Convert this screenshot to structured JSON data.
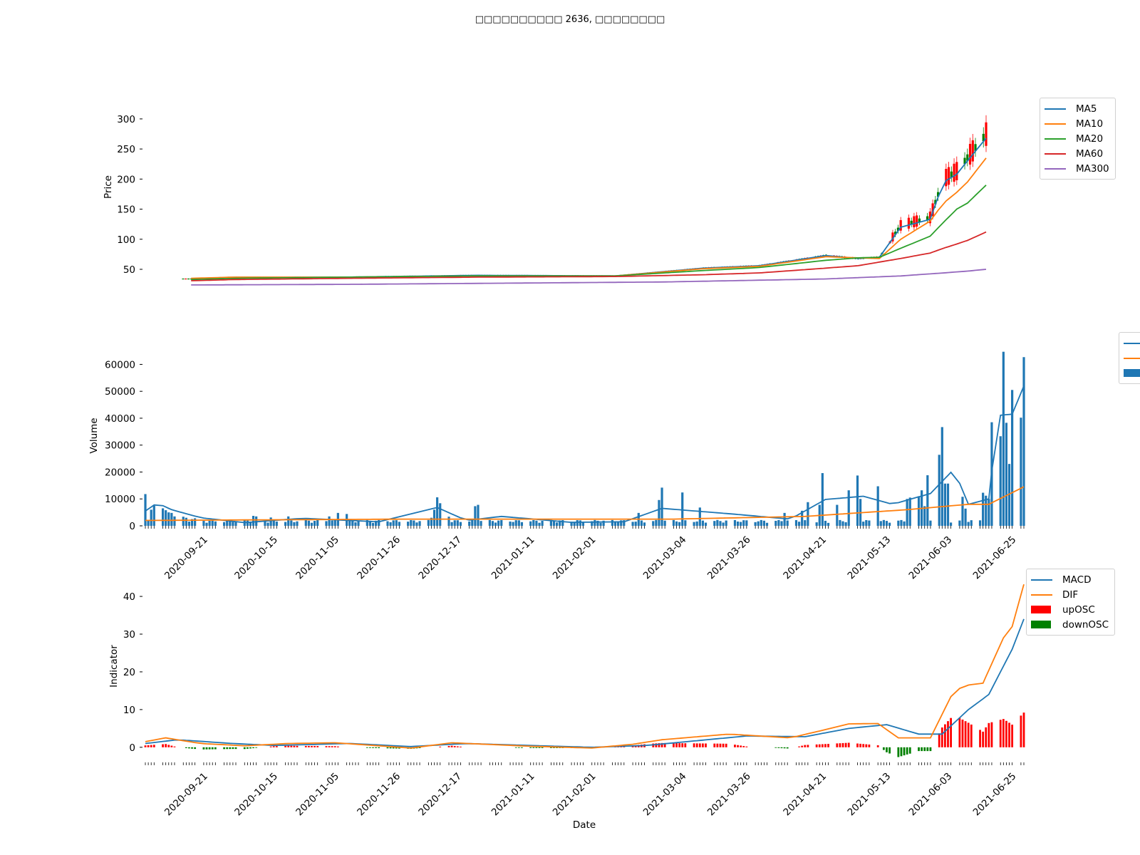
{
  "title": "□□□□□□□□□□ 2636, □□□□□□□□",
  "colors": {
    "blue": "#1f77b4",
    "orange": "#ff7f0e",
    "green": "#2ca02c",
    "red": "#d62728",
    "purple": "#9467bd",
    "osc_up": "#ff0000",
    "osc_down": "#008000"
  },
  "chart_data": [
    {
      "type": "line",
      "panel": "price",
      "ylabel": "Price",
      "ylim": [
        18,
        320
      ],
      "yticks": [
        50,
        100,
        150,
        200,
        250,
        300
      ],
      "x_range": [
        "2020-09-01",
        "2021-06-29"
      ],
      "candlesticks": "daily OHLC candles, red = up, green = down",
      "series": [
        {
          "name": "MA5",
          "color": "#1f77b4",
          "points": [
            [
              "2020-09-04",
              34
            ],
            [
              "2020-09-20",
              37
            ],
            [
              "2020-11-01",
              37
            ],
            [
              "2020-12-20",
              40
            ],
            [
              "2021-02-10",
              39
            ],
            [
              "2021-03-15",
              52
            ],
            [
              "2021-04-05",
              56
            ],
            [
              "2021-04-30",
              73
            ],
            [
              "2021-05-12",
              68
            ],
            [
              "2021-05-20",
              70
            ],
            [
              "2021-05-28",
              120
            ],
            [
              "2021-06-08",
              133
            ],
            [
              "2021-06-13",
              195
            ],
            [
              "2021-06-18",
              208
            ],
            [
              "2021-06-22",
              230
            ],
            [
              "2021-06-29",
              268
            ]
          ]
        },
        {
          "name": "MA10",
          "color": "#ff7f0e",
          "points": [
            [
              "2020-09-04",
              35
            ],
            [
              "2020-09-20",
              37
            ],
            [
              "2020-11-01",
              37
            ],
            [
              "2020-12-20",
              39
            ],
            [
              "2021-02-10",
              39
            ],
            [
              "2021-03-15",
              51
            ],
            [
              "2021-04-05",
              55
            ],
            [
              "2021-04-30",
              71
            ],
            [
              "2021-05-12",
              69
            ],
            [
              "2021-05-20",
              68
            ],
            [
              "2021-05-28",
              100
            ],
            [
              "2021-06-08",
              130
            ],
            [
              "2021-06-13",
              160
            ],
            [
              "2021-06-18",
              178
            ],
            [
              "2021-06-22",
              195
            ],
            [
              "2021-06-29",
              235
            ]
          ]
        },
        {
          "name": "MA20",
          "color": "#2ca02c",
          "points": [
            [
              "2020-09-04",
              33
            ],
            [
              "2020-09-20",
              35
            ],
            [
              "2020-11-01",
              37
            ],
            [
              "2020-12-20",
              39
            ],
            [
              "2021-02-10",
              39
            ],
            [
              "2021-03-15",
              48
            ],
            [
              "2021-04-05",
              53
            ],
            [
              "2021-04-30",
              65
            ],
            [
              "2021-05-12",
              69
            ],
            [
              "2021-05-20",
              70
            ],
            [
              "2021-05-28",
              85
            ],
            [
              "2021-06-08",
              105
            ],
            [
              "2021-06-13",
              128
            ],
            [
              "2021-06-18",
              150
            ],
            [
              "2021-06-22",
              160
            ],
            [
              "2021-06-29",
              190
            ]
          ]
        },
        {
          "name": "MA60",
          "color": "#d62728",
          "points": [
            [
              "2020-09-04",
              31
            ],
            [
              "2020-09-20",
              33
            ],
            [
              "2020-11-01",
              35
            ],
            [
              "2020-12-20",
              37
            ],
            [
              "2021-02-10",
              38
            ],
            [
              "2021-03-15",
              41
            ],
            [
              "2021-04-05",
              44
            ],
            [
              "2021-04-30",
              52
            ],
            [
              "2021-05-12",
              56
            ],
            [
              "2021-05-20",
              62
            ],
            [
              "2021-05-28",
              68
            ],
            [
              "2021-06-08",
              77
            ],
            [
              "2021-06-13",
              85
            ],
            [
              "2021-06-18",
              92
            ],
            [
              "2021-06-22",
              98
            ],
            [
              "2021-06-29",
              112
            ]
          ]
        },
        {
          "name": "MA300",
          "color": "#9467bd",
          "points": [
            [
              "2020-09-04",
              24
            ],
            [
              "2020-11-01",
              25
            ],
            [
              "2021-01-01",
              27
            ],
            [
              "2021-03-01",
              29
            ],
            [
              "2021-04-30",
              34
            ],
            [
              "2021-05-28",
              39
            ],
            [
              "2021-06-13",
              44
            ],
            [
              "2021-06-22",
              47
            ],
            [
              "2021-06-29",
              50
            ]
          ]
        }
      ]
    },
    {
      "type": "bar",
      "panel": "volume",
      "ylabel": "Volume",
      "ylim": [
        0,
        67000
      ],
      "yticks": [
        0,
        10000,
        20000,
        30000,
        40000,
        50000,
        60000
      ],
      "xticks": [
        "2020-09-21",
        "2020-10-15",
        "2020-11-05",
        "2020-11-26",
        "2020-12-17",
        "2021-01-11",
        "2021-02-01",
        "2021-03-04",
        "2021-03-26",
        "2021-04-21",
        "2021-05-13",
        "2021-06-03",
        "2021-06-25"
      ],
      "series": [
        {
          "name": "",
          "color": "#1f77b4",
          "type": "line",
          "points": [
            [
              "2020-09-01",
              5500
            ],
            [
              "2020-09-05",
              8500
            ],
            [
              "2020-09-10",
              6000
            ],
            [
              "2020-09-20",
              3000
            ],
            [
              "2020-10-05",
              1200
            ],
            [
              "2020-10-25",
              2800
            ],
            [
              "2020-11-20",
              1500
            ],
            [
              "2020-12-10",
              6800
            ],
            [
              "2020-12-20",
              2000
            ],
            [
              "2021-01-01",
              3500
            ],
            [
              "2021-01-25",
              1300
            ],
            [
              "2021-02-12",
              1500
            ],
            [
              "2021-02-25",
              6500
            ],
            [
              "2021-03-20",
              4500
            ],
            [
              "2021-04-10",
              2500
            ],
            [
              "2021-04-22",
              9800
            ],
            [
              "2021-05-05",
              11000
            ],
            [
              "2021-05-15",
              8000
            ],
            [
              "2021-05-28",
              12000
            ],
            [
              "2021-06-05",
              21000
            ],
            [
              "2021-06-10",
              8000
            ],
            [
              "2021-06-17",
              10000
            ],
            [
              "2021-06-20",
              41000
            ],
            [
              "2021-06-25",
              41500
            ],
            [
              "2021-06-29",
              52000
            ]
          ]
        },
        {
          "name": "",
          "color": "#ff7f0e",
          "type": "line",
          "points": [
            [
              "2020-09-01",
              2000
            ],
            [
              "2020-12-01",
              2500
            ],
            [
              "2021-03-01",
              2500
            ],
            [
              "2021-04-15",
              3500
            ],
            [
              "2021-05-20",
              6000
            ],
            [
              "2021-06-10",
              8000
            ],
            [
              "2021-06-17",
              8000
            ],
            [
              "2021-06-29",
              14500
            ]
          ]
        },
        {
          "name": "",
          "color": "#1f77b4",
          "type": "bar",
          "values_by_date": [
            [
              "2020-09-01",
              11800
            ],
            [
              "2020-09-03",
              6000
            ],
            [
              "2020-09-04",
              7500
            ],
            [
              "2020-09-07",
              6500
            ],
            [
              "2020-09-08",
              5800
            ],
            [
              "2020-09-09",
              5000
            ],
            [
              "2020-09-10",
              4800
            ],
            [
              "2020-09-11",
              3500
            ],
            [
              "2020-09-14",
              3400
            ],
            [
              "2020-09-15",
              3000
            ],
            [
              "2020-09-16",
              1600
            ],
            [
              "2020-09-17",
              2500
            ],
            [
              "2020-09-18",
              2800
            ],
            [
              "2020-10-08",
              3700
            ],
            [
              "2020-10-09",
              3500
            ],
            [
              "2020-10-14",
              3100
            ],
            [
              "2020-10-20",
              3500
            ],
            [
              "2020-11-03",
              3500
            ],
            [
              "2020-11-06",
              4800
            ],
            [
              "2020-11-09",
              4400
            ],
            [
              "2020-12-08",
              3000
            ],
            [
              "2020-12-09",
              6000
            ],
            [
              "2020-12-10",
              10600
            ],
            [
              "2020-12-11",
              8400
            ],
            [
              "2020-12-14",
              3400
            ],
            [
              "2020-12-23",
              7300
            ],
            [
              "2020-12-24",
              7800
            ],
            [
              "2021-02-17",
              4800
            ],
            [
              "2021-02-24",
              9600
            ],
            [
              "2021-02-25",
              14200
            ],
            [
              "2021-03-04",
              12400
            ],
            [
              "2021-03-10",
              6800
            ],
            [
              "2021-04-08",
              4800
            ],
            [
              "2021-04-14",
              5600
            ],
            [
              "2021-04-16",
              8800
            ],
            [
              "2021-04-20",
              7800
            ],
            [
              "2021-04-21",
              19600
            ],
            [
              "2021-04-26",
              7800
            ],
            [
              "2021-04-30",
              13200
            ],
            [
              "2021-05-03",
              18700
            ],
            [
              "2021-05-04",
              10000
            ],
            [
              "2021-05-10",
              14700
            ],
            [
              "2021-05-20",
              10000
            ],
            [
              "2021-05-21",
              10500
            ],
            [
              "2021-05-24",
              11000
            ],
            [
              "2021-05-25",
              13200
            ],
            [
              "2021-05-26",
              7300
            ],
            [
              "2021-05-27",
              18800
            ],
            [
              "2021-05-31",
              26400
            ],
            [
              "2021-06-01",
              36700
            ],
            [
              "2021-06-02",
              15700
            ],
            [
              "2021-06-03",
              15700
            ],
            [
              "2021-06-08",
              10800
            ],
            [
              "2021-06-09",
              6400
            ],
            [
              "2021-06-15",
              12300
            ],
            [
              "2021-06-16",
              11200
            ],
            [
              "2021-06-17",
              10000
            ],
            [
              "2021-06-18",
              38500
            ],
            [
              "2021-06-21",
              33300
            ],
            [
              "2021-06-22",
              64700
            ],
            [
              "2021-06-23",
              38300
            ],
            [
              "2021-06-24",
              23000
            ],
            [
              "2021-06-25",
              50500
            ],
            [
              "2021-06-26",
              33200
            ],
            [
              "2021-06-27",
              62200
            ],
            [
              "2021-06-28",
              40200
            ],
            [
              "2021-06-29",
              62700
            ],
            [
              "2021-06-30",
              65500
            ]
          ],
          "default_value": 1800
        }
      ]
    },
    {
      "type": "line",
      "panel": "indicator",
      "ylabel": "Indicator",
      "xlabel": "Date",
      "ylim": [
        -4,
        47
      ],
      "yticks": [
        0,
        10,
        20,
        30,
        40
      ],
      "xticks": [
        "2020-09-21",
        "2020-10-15",
        "2020-11-05",
        "2020-11-26",
        "2020-12-17",
        "2021-01-11",
        "2021-02-01",
        "2021-03-04",
        "2021-03-26",
        "2021-04-21",
        "2021-05-13",
        "2021-06-03",
        "2021-06-25"
      ],
      "series": [
        {
          "name": "MACD",
          "color": "#1f77b4",
          "points": [
            [
              "2020-09-01",
              1.0
            ],
            [
              "2020-09-12",
              2.0
            ],
            [
              "2020-10-01",
              1.0
            ],
            [
              "2020-10-15",
              0.5
            ],
            [
              "2020-11-10",
              1.0
            ],
            [
              "2020-12-01",
              0.2
            ],
            [
              "2020-12-20",
              1.0
            ],
            [
              "2021-01-10",
              0.5
            ],
            [
              "2021-02-01",
              0.0
            ],
            [
              "2021-02-20",
              0.5
            ],
            [
              "2021-03-26",
              3.0
            ],
            [
              "2021-04-15",
              2.8
            ],
            [
              "2021-04-30",
              5.0
            ],
            [
              "2021-05-13",
              6.0
            ],
            [
              "2021-05-24",
              3.5
            ],
            [
              "2021-06-01",
              3.5
            ],
            [
              "2021-06-10",
              10.0
            ],
            [
              "2021-06-17",
              14.0
            ],
            [
              "2021-06-25",
              26.0
            ],
            [
              "2021-06-30",
              36.0
            ]
          ]
        },
        {
          "name": "DIF",
          "color": "#ff7f0e",
          "points": [
            [
              "2020-09-01",
              1.5
            ],
            [
              "2020-09-08",
              2.5
            ],
            [
              "2020-09-20",
              1.0
            ],
            [
              "2020-10-05",
              0.4
            ],
            [
              "2020-10-20",
              1.0
            ],
            [
              "2020-11-05",
              1.2
            ],
            [
              "2020-12-01",
              -0.2
            ],
            [
              "2020-12-15",
              1.2
            ],
            [
              "2021-01-10",
              0.3
            ],
            [
              "2021-02-01",
              -0.2
            ],
            [
              "2021-02-15",
              0.8
            ],
            [
              "2021-02-25",
              2.0
            ],
            [
              "2021-03-20",
              3.5
            ],
            [
              "2021-04-10",
              2.5
            ],
            [
              "2021-04-21",
              4.5
            ],
            [
              "2021-04-30",
              6.2
            ],
            [
              "2021-05-10",
              6.3
            ],
            [
              "2021-05-17",
              2.5
            ],
            [
              "2021-05-28",
              2.5
            ],
            [
              "2021-06-05",
              15.0
            ],
            [
              "2021-06-10",
              16.5
            ],
            [
              "2021-06-15",
              17.0
            ],
            [
              "2021-06-22",
              29.0
            ],
            [
              "2021-06-25",
              32.0
            ],
            [
              "2021-06-30",
              46.0
            ]
          ]
        },
        {
          "name": "upOSC",
          "color": "#ff0000",
          "type": "bar"
        },
        {
          "name": "downOSC",
          "color": "#008000",
          "type": "bar"
        }
      ]
    }
  ]
}
